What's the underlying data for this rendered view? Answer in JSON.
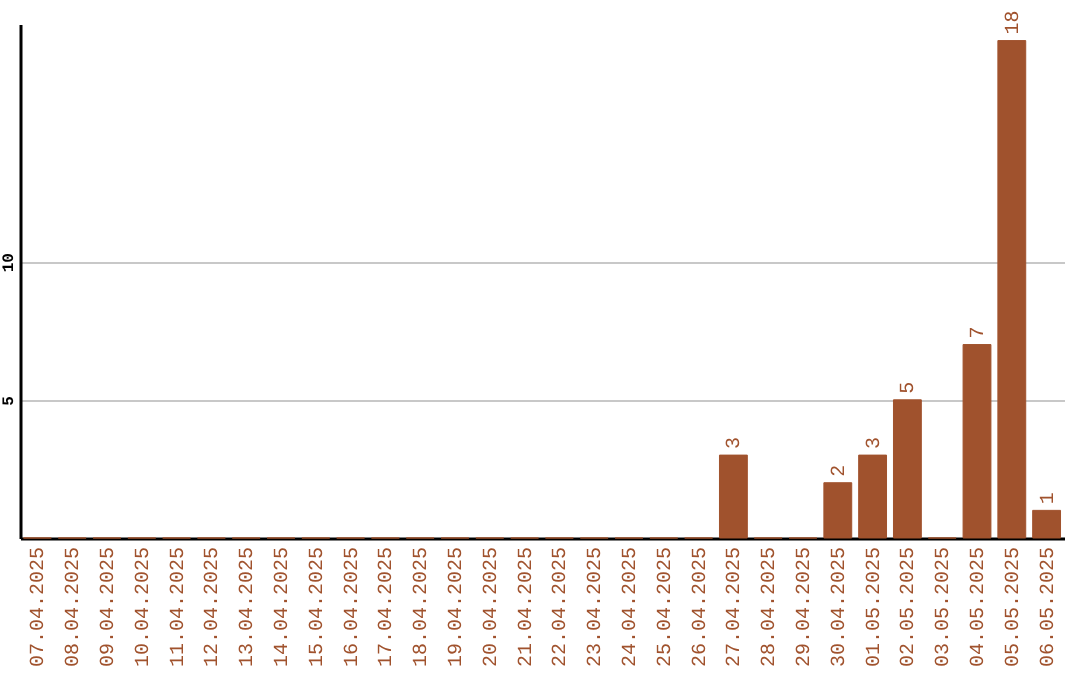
{
  "chart_data": {
    "type": "bar",
    "categories": [
      "07.04.2025",
      "08.04.2025",
      "09.04.2025",
      "10.04.2025",
      "11.04.2025",
      "12.04.2025",
      "13.04.2025",
      "14.04.2025",
      "15.04.2025",
      "16.04.2025",
      "17.04.2025",
      "18.04.2025",
      "19.04.2025",
      "20.04.2025",
      "21.04.2025",
      "22.04.2025",
      "23.04.2025",
      "24.04.2025",
      "25.04.2025",
      "26.04.2025",
      "27.04.2025",
      "28.04.2025",
      "29.04.2025",
      "30.04.2025",
      "01.05.2025",
      "02.05.2025",
      "03.05.2025",
      "04.05.2025",
      "05.05.2025",
      "06.05.2025"
    ],
    "values": [
      0,
      0,
      0,
      0,
      0,
      0,
      0,
      0,
      0,
      0,
      0,
      0,
      0,
      0,
      0,
      0,
      0,
      0,
      0,
      0,
      3,
      0,
      0,
      2,
      3,
      5,
      0,
      7,
      18,
      1
    ],
    "value_labels": [
      null,
      null,
      null,
      null,
      null,
      null,
      null,
      null,
      null,
      null,
      null,
      null,
      null,
      null,
      null,
      null,
      null,
      null,
      null,
      null,
      "3",
      null,
      null,
      "2",
      "3",
      "5",
      null,
      "7",
      "18",
      "1"
    ],
    "color": "#a0522d",
    "ylim": [
      0,
      18.6
    ],
    "yticks": [
      5,
      10
    ],
    "grid": "y"
  }
}
